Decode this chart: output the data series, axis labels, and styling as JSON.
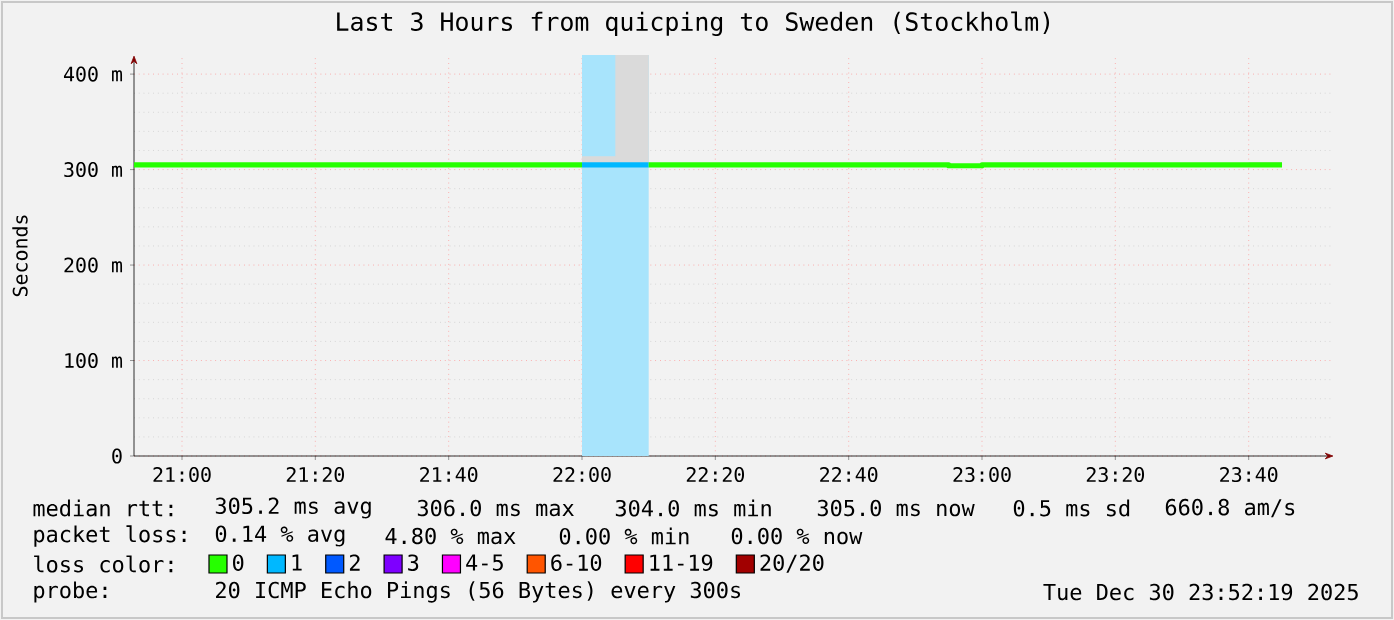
{
  "chart_data": {
    "type": "line",
    "title": "Last 3 Hours from quicping to Sweden (Stockholm)",
    "ylabel": "Seconds",
    "xlim": [
      20.88,
      23.88
    ],
    "xticks": [
      {
        "value": 21.0,
        "label": "21:00"
      },
      {
        "value": 21.3333,
        "label": "21:20"
      },
      {
        "value": 21.6667,
        "label": "21:40"
      },
      {
        "value": 22.0,
        "label": "22:00"
      },
      {
        "value": 22.3333,
        "label": "22:20"
      },
      {
        "value": 22.6667,
        "label": "22:40"
      },
      {
        "value": 23.0,
        "label": "23:00"
      },
      {
        "value": 23.3333,
        "label": "23:20"
      },
      {
        "value": 23.6667,
        "label": "23:40"
      }
    ],
    "ylim": [
      0,
      420
    ],
    "yticks": [
      {
        "value": 0,
        "label": "0"
      },
      {
        "value": 100,
        "label": "100 m"
      },
      {
        "value": 200,
        "label": "200 m"
      },
      {
        "value": 300,
        "label": "300 m"
      },
      {
        "value": 400,
        "label": "400 m"
      }
    ],
    "grid": true,
    "legend": "bottom",
    "legend_title": "loss color:",
    "series": [
      {
        "name": "0",
        "color": "#26ff00",
        "x": [
          20.88,
          22.0
        ],
        "values": [
          305,
          305
        ]
      },
      {
        "name": "1",
        "color": "#00b8ff",
        "x": [
          22.0,
          22.0833,
          22.0833,
          22.1667
        ],
        "values": [
          305,
          305,
          305,
          305
        ],
        "lower": [
          305,
          305,
          305,
          305
        ],
        "upper": [
          314,
          314,
          420,
          420
        ]
      },
      {
        "color": "#26ff00",
        "x": [
          22.1667,
          22.9167,
          22.9167,
          23.0,
          23.0,
          23.6667,
          23.75
        ],
        "values": [
          305,
          305,
          304,
          304,
          305,
          305,
          305
        ],
        "lower": [
          null,
          null,
          null,
          null,
          null,
          305,
          305
        ],
        "upper": [
          null,
          null,
          null,
          null,
          null,
          308,
          308
        ]
      },
      {
        "name": "2",
        "color": "#0059ff"
      },
      {
        "name": "3",
        "color": "#7e00ff"
      },
      {
        "name": "4-5",
        "color": "#ff00ff"
      },
      {
        "name": "6-10",
        "color": "#ff5500"
      },
      {
        "name": "11-19",
        "color": "#ff0000"
      },
      {
        "name": "20/20",
        "color": "#a10000"
      }
    ],
    "bands": [
      {
        "axis": "x",
        "from": 22.0,
        "to": 22.1667,
        "color": "#a8e4fc"
      }
    ],
    "annotations": [
      "median rtt:",
      "305.2 ms avg",
      "306.0 ms max",
      "304.0 ms min",
      "305.0 ms now",
      "0.5 ms sd",
      "660.8 am/s",
      "packet loss:",
      "0.14 % avg",
      "4.80 % max",
      "0.00 % min",
      "0.00 % now",
      "probe:",
      "20 ICMP Echo Pings (56 Bytes) every 300s",
      "Tue Dec 30 23:52:19 2025"
    ]
  }
}
